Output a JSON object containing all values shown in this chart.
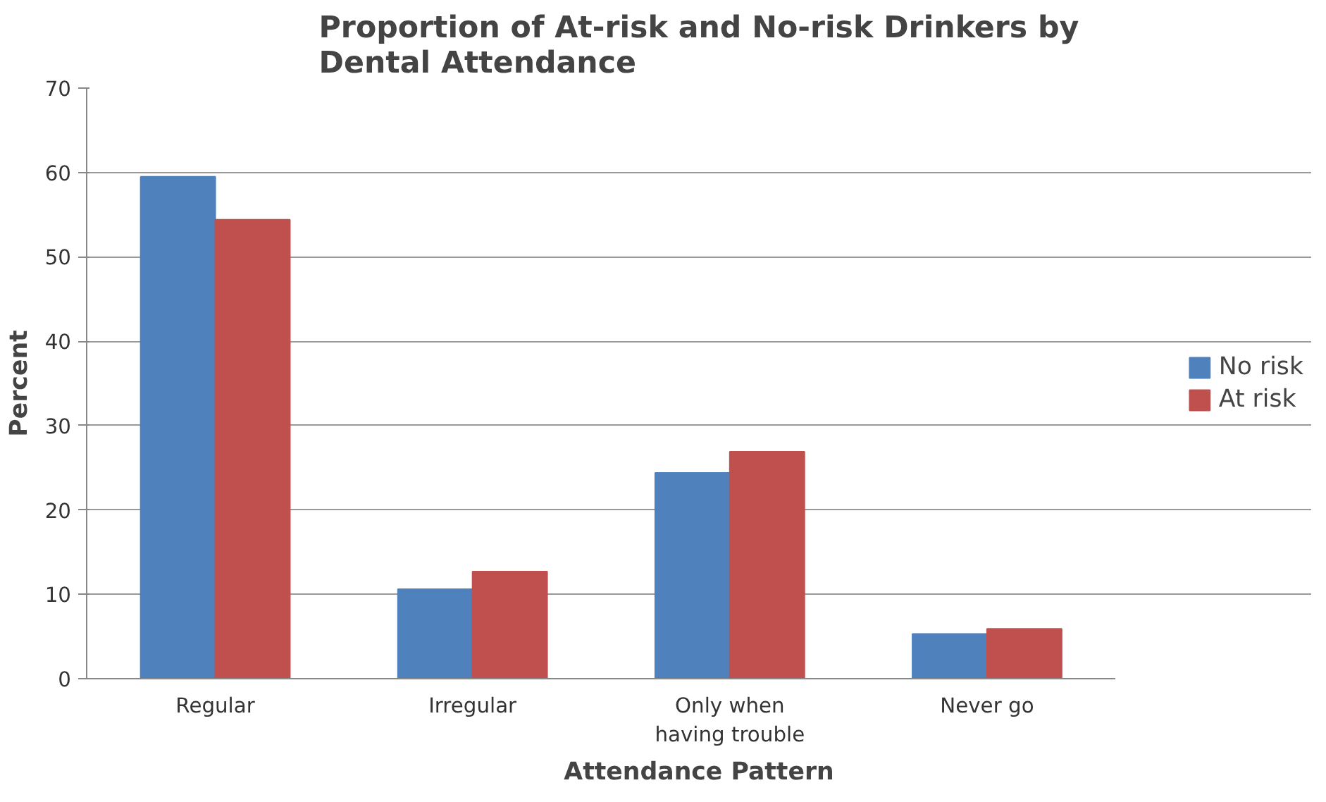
{
  "chart_data": {
    "type": "bar",
    "title": "Proportion of At-risk and No-risk Drinkers by\nDental Attendance",
    "xlabel": "Attendance Pattern",
    "ylabel": "Percent",
    "categories": [
      "Regular",
      "Irregular",
      "Only when\nhaving trouble",
      "Never go"
    ],
    "series": [
      {
        "name": "No risk",
        "color": "#4f81bd",
        "values": [
          59.5,
          10.6,
          24.4,
          5.3
        ]
      },
      {
        "name": "At risk",
        "color": "#c0504d",
        "values": [
          54.4,
          12.7,
          26.9,
          5.9
        ]
      }
    ],
    "ylim": [
      0,
      70
    ],
    "yticks": [
      0,
      10,
      20,
      30,
      40,
      50,
      60,
      70
    ],
    "grid": "y",
    "legend": "right"
  }
}
